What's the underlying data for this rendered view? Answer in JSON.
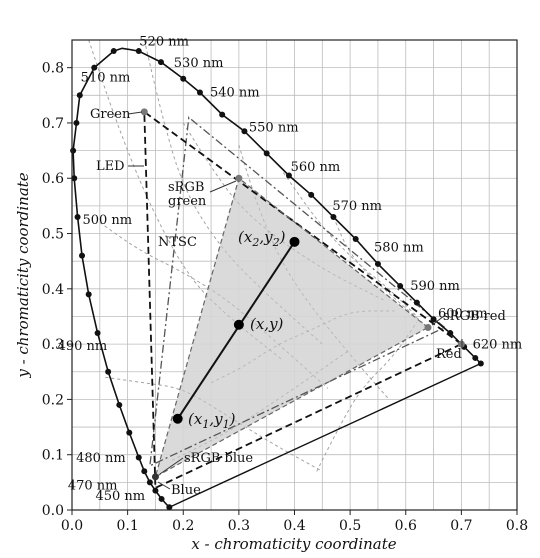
{
  "chart_data": {
    "type": "diagram",
    "xlabel": "x - chromaticity coordinate",
    "ylabel": "y - chromaticity coordinate",
    "xlim": [
      0.0,
      0.8
    ],
    "ylim": [
      0.0,
      0.85
    ],
    "xticks": [
      "0.0",
      "0.1",
      "0.2",
      "0.3",
      "0.4",
      "0.5",
      "0.6",
      "0.7",
      "0.8"
    ],
    "yticks": [
      "0.0",
      "0.1",
      "0.2",
      "0.3",
      "0.4",
      "0.5",
      "0.6",
      "0.7",
      "0.8"
    ],
    "grid": true,
    "locus": [
      [
        0.175,
        0.005
      ],
      [
        0.17,
        0.01
      ],
      [
        0.161,
        0.02
      ],
      [
        0.15,
        0.035
      ],
      [
        0.14,
        0.05
      ],
      [
        0.13,
        0.07
      ],
      [
        0.12,
        0.095
      ],
      [
        0.103,
        0.14
      ],
      [
        0.085,
        0.19
      ],
      [
        0.065,
        0.25
      ],
      [
        0.046,
        0.32
      ],
      [
        0.03,
        0.39
      ],
      [
        0.018,
        0.46
      ],
      [
        0.01,
        0.53
      ],
      [
        0.004,
        0.6
      ],
      [
        0.002,
        0.65
      ],
      [
        0.008,
        0.7
      ],
      [
        0.014,
        0.75
      ],
      [
        0.04,
        0.8
      ],
      [
        0.075,
        0.83
      ],
      [
        0.09,
        0.835
      ],
      [
        0.12,
        0.83
      ],
      [
        0.16,
        0.81
      ],
      [
        0.2,
        0.78
      ],
      [
        0.23,
        0.755
      ],
      [
        0.27,
        0.715
      ],
      [
        0.31,
        0.685
      ],
      [
        0.35,
        0.645
      ],
      [
        0.39,
        0.605
      ],
      [
        0.43,
        0.57
      ],
      [
        0.47,
        0.53
      ],
      [
        0.51,
        0.49
      ],
      [
        0.55,
        0.445
      ],
      [
        0.59,
        0.405
      ],
      [
        0.62,
        0.375
      ],
      [
        0.65,
        0.345
      ],
      [
        0.68,
        0.32
      ],
      [
        0.705,
        0.295
      ],
      [
        0.725,
        0.275
      ],
      [
        0.735,
        0.265
      ]
    ],
    "locus_dots": [
      [
        0.175,
        0.005
      ],
      [
        0.161,
        0.02
      ],
      [
        0.15,
        0.035
      ],
      [
        0.14,
        0.05
      ],
      [
        0.13,
        0.07
      ],
      [
        0.12,
        0.095
      ],
      [
        0.103,
        0.14
      ],
      [
        0.085,
        0.19
      ],
      [
        0.065,
        0.25
      ],
      [
        0.046,
        0.32
      ],
      [
        0.03,
        0.39
      ],
      [
        0.018,
        0.46
      ],
      [
        0.01,
        0.53
      ],
      [
        0.004,
        0.6
      ],
      [
        0.002,
        0.65
      ],
      [
        0.008,
        0.7
      ],
      [
        0.014,
        0.75
      ],
      [
        0.04,
        0.8
      ],
      [
        0.075,
        0.83
      ],
      [
        0.12,
        0.83
      ],
      [
        0.16,
        0.81
      ],
      [
        0.2,
        0.78
      ],
      [
        0.23,
        0.755
      ],
      [
        0.27,
        0.715
      ],
      [
        0.31,
        0.685
      ],
      [
        0.35,
        0.645
      ],
      [
        0.39,
        0.605
      ],
      [
        0.43,
        0.57
      ],
      [
        0.47,
        0.53
      ],
      [
        0.51,
        0.49
      ],
      [
        0.55,
        0.445
      ],
      [
        0.59,
        0.405
      ],
      [
        0.62,
        0.375
      ],
      [
        0.65,
        0.345
      ],
      [
        0.68,
        0.32
      ],
      [
        0.705,
        0.295
      ],
      [
        0.725,
        0.275
      ],
      [
        0.735,
        0.265
      ]
    ],
    "wavelengths": [
      {
        "label": "520 nm",
        "x": 0.085,
        "y": 0.835
      },
      {
        "label": "530 nm",
        "x": 0.165,
        "y": 0.805
      },
      {
        "label": "540 nm",
        "x": 0.23,
        "y": 0.755
      },
      {
        "label": "550 nm",
        "x": 0.3,
        "y": 0.69
      },
      {
        "label": "560 nm",
        "x": 0.375,
        "y": 0.62
      },
      {
        "label": "570 nm",
        "x": 0.45,
        "y": 0.55
      },
      {
        "label": "580 nm",
        "x": 0.525,
        "y": 0.475
      },
      {
        "label": "590 nm",
        "x": 0.59,
        "y": 0.405
      },
      {
        "label": "600 nm",
        "x": 0.64,
        "y": 0.355
      },
      {
        "label": "620 nm",
        "x": 0.695,
        "y": 0.305
      },
      {
        "label": "510 nm",
        "x": 0.012,
        "y": 0.75
      },
      {
        "label": "500 nm",
        "x": 0.008,
        "y": 0.535
      },
      {
        "label": "490 nm",
        "x": 0.046,
        "y": 0.32
      },
      {
        "label": "480 nm",
        "x": 0.09,
        "y": 0.13
      },
      {
        "label": "470 nm",
        "x": 0.122,
        "y": 0.055
      },
      {
        "label": "450 nm",
        "x": 0.15,
        "y": 0.025
      }
    ],
    "srgb": {
      "red": [
        0.64,
        0.33
      ],
      "green": [
        0.3,
        0.6
      ],
      "blue": [
        0.15,
        0.06
      ],
      "label_red": "sRGB red",
      "label_green_1": "sRGB",
      "label_green_2": "green",
      "label_blue": "sRGB blue"
    },
    "ntsc": {
      "label": "NTSC",
      "red": [
        0.67,
        0.33
      ],
      "green": [
        0.21,
        0.71
      ],
      "blue": [
        0.14,
        0.08
      ]
    },
    "led": {
      "label": "LED",
      "red": [
        0.7,
        0.3
      ],
      "green": [
        0.13,
        0.72
      ],
      "blue": [
        0.15,
        0.04
      ],
      "label_red": "Red",
      "label_green": "Green",
      "label_blue": "Blue"
    },
    "mix_line": {
      "p1": [
        0.19,
        0.165
      ],
      "p": [
        0.3,
        0.335
      ],
      "p2": [
        0.4,
        0.485
      ]
    },
    "isotherms": [
      [
        [
          0.03,
          0.85
        ],
        [
          0.08,
          0.7
        ],
        [
          0.14,
          0.55
        ],
        [
          0.21,
          0.42
        ],
        [
          0.28,
          0.35
        ],
        [
          0.38,
          0.27
        ]
      ],
      [
        [
          0.13,
          0.85
        ],
        [
          0.16,
          0.72
        ],
        [
          0.2,
          0.58
        ],
        [
          0.27,
          0.47
        ],
        [
          0.35,
          0.39
        ],
        [
          0.45,
          0.3
        ]
      ],
      [
        [
          0.38,
          0.61
        ],
        [
          0.45,
          0.51
        ],
        [
          0.52,
          0.44
        ],
        [
          0.57,
          0.4
        ],
        [
          0.62,
          0.35
        ]
      ],
      [
        [
          0.47,
          0.53
        ],
        [
          0.5,
          0.46
        ],
        [
          0.56,
          0.4
        ],
        [
          0.64,
          0.33
        ]
      ],
      [
        [
          0.05,
          0.52
        ],
        [
          0.12,
          0.47
        ],
        [
          0.2,
          0.43
        ],
        [
          0.28,
          0.38
        ],
        [
          0.36,
          0.31
        ],
        [
          0.46,
          0.22
        ]
      ],
      [
        [
          0.06,
          0.24
        ],
        [
          0.13,
          0.23
        ],
        [
          0.2,
          0.22
        ],
        [
          0.28,
          0.17
        ],
        [
          0.36,
          0.12
        ],
        [
          0.45,
          0.07
        ]
      ],
      [
        [
          0.2,
          0.7
        ],
        [
          0.25,
          0.62
        ],
        [
          0.3,
          0.55
        ],
        [
          0.37,
          0.49
        ],
        [
          0.46,
          0.43
        ],
        [
          0.56,
          0.38
        ]
      ],
      [
        [
          0.3,
          0.66
        ],
        [
          0.33,
          0.56
        ],
        [
          0.37,
          0.46
        ],
        [
          0.42,
          0.38
        ],
        [
          0.5,
          0.28
        ],
        [
          0.57,
          0.2
        ]
      ],
      [
        [
          0.25,
          0.23
        ],
        [
          0.31,
          0.26
        ],
        [
          0.37,
          0.3
        ],
        [
          0.44,
          0.33
        ],
        [
          0.5,
          0.36
        ],
        [
          0.58,
          0.36
        ]
      ],
      [
        [
          0.18,
          0.09
        ],
        [
          0.28,
          0.14
        ],
        [
          0.4,
          0.22
        ],
        [
          0.5,
          0.29
        ]
      ],
      [
        [
          0.44,
          0.07
        ],
        [
          0.48,
          0.15
        ],
        [
          0.52,
          0.22
        ],
        [
          0.58,
          0.28
        ],
        [
          0.62,
          0.34
        ]
      ]
    ],
    "point_labels": {
      "p1_a": "(x",
      "p1_sub": "1",
      "p1_b": ",y",
      "p1_sub2": "1",
      "p1_c": ")",
      "p_text": "(x,y)",
      "p2_a": "(x",
      "p2_sub": "2",
      "p2_b": ",y",
      "p2_sub2": "2",
      "p2_c": ")"
    }
  }
}
